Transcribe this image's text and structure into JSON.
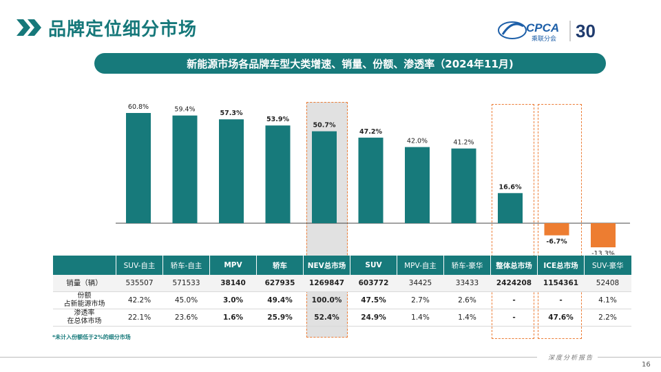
{
  "page_title": "品牌定位细分市场",
  "logo": {
    "brand": "CPCA",
    "brand_cn": "乘联分会",
    "anniversary": "30"
  },
  "subtitle": "新能源市场各品牌车型大类增速、销量、份额、渗透率（2024年11月)",
  "colors": {
    "teal": "#177a7b",
    "orange": "#ed7d31",
    "dash": "#ec7a32"
  },
  "chart_data": {
    "type": "bar",
    "categories": [
      "SUV-自主",
      "轿车-自主",
      "MPV",
      "轿车",
      "NEV总市场",
      "SUV",
      "MPV-自主",
      "轿车-豪华",
      "整体总市场",
      "ICE总市场",
      "SUV-豪华"
    ],
    "values": [
      60.8,
      59.4,
      57.3,
      53.9,
      50.7,
      47.2,
      42.0,
      41.2,
      16.6,
      -6.7,
      -13.3
    ],
    "value_labels": [
      "60.8%",
      "59.4%",
      "57.3%",
      "53.9%",
      "50.7%",
      "47.2%",
      "42.0%",
      "41.2%",
      "16.6%",
      "-6.7%",
      "-13.3%"
    ],
    "bold_labels": [
      false,
      false,
      true,
      true,
      true,
      true,
      false,
      false,
      true,
      true,
      false
    ],
    "ylim": [
      -15,
      65
    ],
    "grid": false,
    "legend": "none"
  },
  "table": {
    "headers": [
      "SUV-自主",
      "轿车-自主",
      "MPV",
      "轿车",
      "NEV总市场",
      "SUV",
      "MPV-自主",
      "轿车-豪华",
      "整体总市场",
      "ICE总市场",
      "SUV-豪华"
    ],
    "bold_columns": [
      false,
      false,
      true,
      true,
      true,
      true,
      false,
      false,
      true,
      true,
      false
    ],
    "rows": [
      {
        "label": "销量（辆）",
        "label2": "",
        "values": [
          "535507",
          "571533",
          "38140",
          "627935",
          "1269847",
          "603772",
          "34425",
          "33433",
          "2424208",
          "1154361",
          "52408"
        ]
      },
      {
        "label": "份额",
        "label2": "占新能源市场",
        "values": [
          "42.2%",
          "45.0%",
          "3.0%",
          "49.4%",
          "100.0%",
          "47.5%",
          "2.7%",
          "2.6%",
          "-",
          "-",
          "4.1%"
        ]
      },
      {
        "label": "渗透率",
        "label2": "在总体市场",
        "values": [
          "22.1%",
          "23.6%",
          "1.6%",
          "25.9%",
          "52.4%",
          "24.9%",
          "1.4%",
          "1.4%",
          "-",
          "47.6%",
          "2.2%"
        ]
      }
    ]
  },
  "footnote": "*未计入份额低于2%的细分市场",
  "bottom_tag": "深度分析报告",
  "page_number": "16"
}
